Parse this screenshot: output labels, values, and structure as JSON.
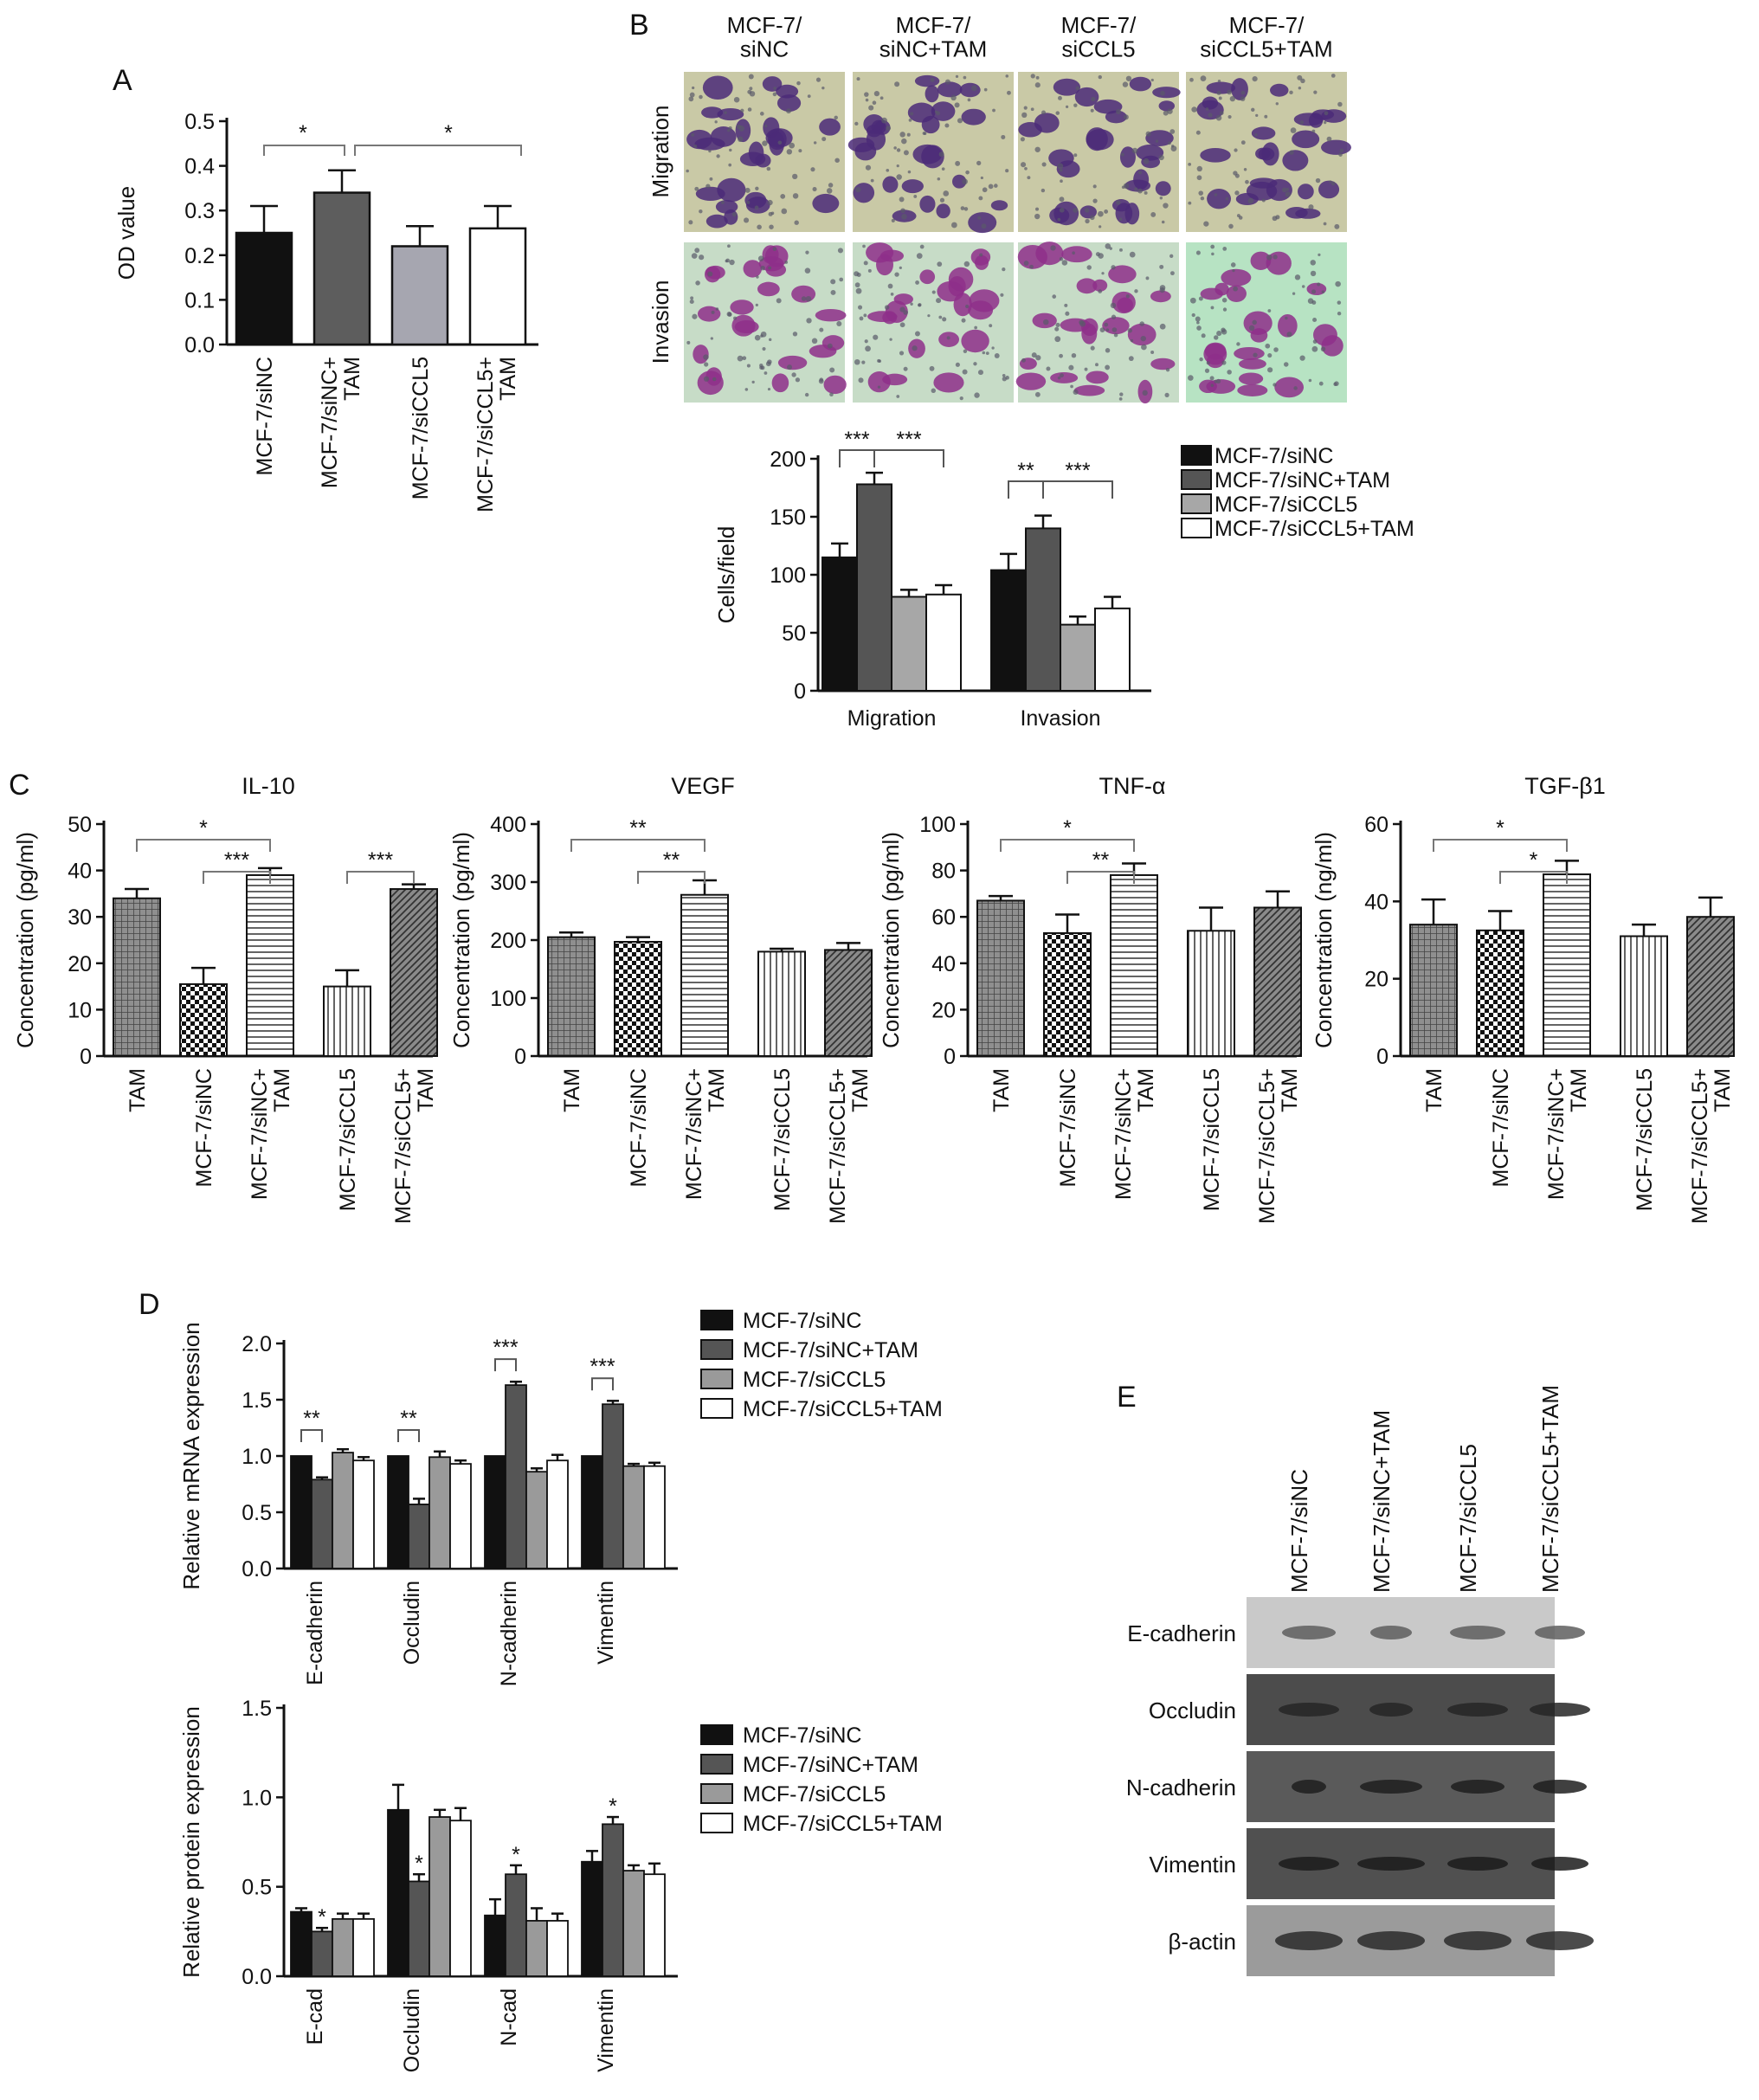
{
  "figure": {
    "panel_letters": [
      "A",
      "B",
      "C",
      "D",
      "E"
    ]
  },
  "panel_b_images": {
    "column_labels": [
      "MCF-7/\nsiNC",
      "MCF-7/\nsiNC+TAM",
      "MCF-7/\nsiCCL5",
      "MCF-7/\nsiCCL5+TAM"
    ],
    "row_labels": [
      "Migration",
      "Invasion"
    ]
  },
  "panel_e_blot": {
    "lanes": [
      "MCF-7/siNC",
      "MCF-7/siNC+TAM",
      "MCF-7/siCCL5",
      "MCF-7/siCCL5+TAM"
    ],
    "rows": [
      "E-cadherin",
      "Occludin",
      "N-cadherin",
      "Vimentin",
      "β-actin"
    ]
  },
  "colors": {
    "black": "#111111",
    "dark_gray": "#555555",
    "mid_gray": "#8a8a8a",
    "light_gray": "#a7a7a7",
    "white": "#ffffff"
  },
  "chart_data": [
    {
      "id": "A",
      "type": "bar",
      "title": "",
      "ylabel": "OD value",
      "ylim": [
        0,
        0.5
      ],
      "yticks": [
        "0.0",
        "0.1",
        "0.2",
        "0.3",
        "0.4",
        "0.5"
      ],
      "categories": [
        "MCF-7/siNC",
        "MCF-7/siNC+\nTAM",
        "MCF-7/siCCL5",
        "MCF-7/siCCL5+\nTAM"
      ],
      "values": [
        0.25,
        0.34,
        0.22,
        0.26
      ],
      "errors": [
        0.06,
        0.05,
        0.045,
        0.05
      ],
      "significance": [
        {
          "from": 0,
          "to": 1,
          "label": "*"
        },
        {
          "from": 1,
          "to": 3,
          "label": "*"
        }
      ]
    },
    {
      "id": "B",
      "type": "bar",
      "ylabel": "Cells/field",
      "ylim": [
        0,
        200
      ],
      "yticks": [
        "0",
        "50",
        "100",
        "150",
        "200"
      ],
      "categories": [
        "Migration",
        "Invasion"
      ],
      "series": [
        {
          "name": "MCF-7/siNC",
          "values": [
            115,
            104
          ],
          "errors": [
            12,
            14
          ]
        },
        {
          "name": "MCF-7/siNC+TAM",
          "values": [
            178,
            140
          ],
          "errors": [
            10,
            11
          ]
        },
        {
          "name": "MCF-7/siCCL5",
          "values": [
            81,
            57
          ],
          "errors": [
            6,
            7
          ]
        },
        {
          "name": "MCF-7/siCCL5+TAM",
          "values": [
            83,
            71
          ],
          "errors": [
            8,
            10
          ]
        }
      ],
      "significance": [
        {
          "group": 0,
          "from": 0,
          "to": 1,
          "label": "***"
        },
        {
          "group": 0,
          "from": 1,
          "to": 3,
          "label": "***"
        },
        {
          "group": 1,
          "from": 0,
          "to": 1,
          "label": "**"
        },
        {
          "group": 1,
          "from": 1,
          "to": 3,
          "label": "***"
        }
      ],
      "legend_position": "right"
    },
    {
      "id": "C1",
      "type": "bar",
      "title": "IL-10",
      "ylabel": "Concentration (pg/ml)",
      "ylim": [
        0,
        50
      ],
      "yticks": [
        "0",
        "10",
        "20",
        "30",
        "40",
        "50"
      ],
      "categories": [
        "TAM",
        "MCF-7/siNC",
        "MCF-7/siNC+\nTAM",
        "MCF-7/siCCL5",
        "MCF-7/siCCL5+\nTAM"
      ],
      "values": [
        34,
        15.5,
        39,
        15,
        36
      ],
      "errors": [
        2,
        3.5,
        1.5,
        3.5,
        1
      ],
      "significance": [
        {
          "from": 0,
          "to": 2,
          "label": "*"
        },
        {
          "from": 1,
          "to": 2,
          "label": "***"
        },
        {
          "from": 3,
          "to": 4,
          "label": "***"
        }
      ]
    },
    {
      "id": "C2",
      "type": "bar",
      "title": "VEGF",
      "ylabel": "Concentration (pg/ml)",
      "ylim": [
        0,
        400
      ],
      "yticks": [
        "0",
        "100",
        "200",
        "300",
        "400"
      ],
      "categories": [
        "TAM",
        "MCF-7/siNC",
        "MCF-7/siNC+\nTAM",
        "MCF-7/siCCL5",
        "MCF-7/siCCL5+\nTAM"
      ],
      "values": [
        205,
        197,
        278,
        180,
        183
      ],
      "errors": [
        8,
        8,
        25,
        5,
        12
      ],
      "significance": [
        {
          "from": 0,
          "to": 2,
          "label": "**"
        },
        {
          "from": 1,
          "to": 2,
          "label": "**"
        }
      ]
    },
    {
      "id": "C3",
      "type": "bar",
      "title": "TNF-α",
      "ylabel": "Concentration (pg/ml)",
      "ylim": [
        0,
        100
      ],
      "yticks": [
        "0",
        "20",
        "40",
        "60",
        "80",
        "100"
      ],
      "categories": [
        "TAM",
        "MCF-7/siNC",
        "MCF-7/siNC+\nTAM",
        "MCF-7/siCCL5",
        "MCF-7/siCCL5+\nTAM"
      ],
      "values": [
        67,
        53,
        78,
        54,
        64
      ],
      "errors": [
        2,
        8,
        5,
        10,
        7
      ],
      "significance": [
        {
          "from": 0,
          "to": 2,
          "label": "*"
        },
        {
          "from": 1,
          "to": 2,
          "label": "**"
        }
      ]
    },
    {
      "id": "C4",
      "type": "bar",
      "title": "TGF-β1",
      "ylabel": "Concentration (ng/ml)",
      "ylim": [
        0,
        60
      ],
      "yticks": [
        "0",
        "20",
        "40",
        "60"
      ],
      "categories": [
        "TAM",
        "MCF-7/siNC",
        "MCF-7/siNC+\nTAM",
        "MCF-7/siCCL5",
        "MCF-7/siCCL5+\nTAM"
      ],
      "values": [
        34,
        32.5,
        47,
        31,
        36
      ],
      "errors": [
        6.5,
        5,
        3.5,
        3,
        5
      ],
      "significance": [
        {
          "from": 0,
          "to": 2,
          "label": "*"
        },
        {
          "from": 1,
          "to": 2,
          "label": "*"
        }
      ]
    },
    {
      "id": "D1",
      "type": "bar",
      "ylabel": "Relative mRNA expression",
      "ylim": [
        0,
        2.0
      ],
      "yticks": [
        "0.0",
        "0.5",
        "1.0",
        "1.5",
        "2.0"
      ],
      "categories": [
        "E-cadherin",
        "Occludin",
        "N-cadherin",
        "Vimentin"
      ],
      "series": [
        {
          "name": "MCF-7/siNC",
          "values": [
            1.0,
            1.0,
            1.0,
            1.0
          ],
          "errors": [
            0,
            0,
            0,
            0
          ]
        },
        {
          "name": "MCF-7/siNC+TAM",
          "values": [
            0.79,
            0.57,
            1.63,
            1.46
          ],
          "errors": [
            0.02,
            0.05,
            0.03,
            0.03
          ]
        },
        {
          "name": "MCF-7/siCCL5",
          "values": [
            1.03,
            0.99,
            0.86,
            0.91
          ],
          "errors": [
            0.03,
            0.05,
            0.03,
            0.02
          ]
        },
        {
          "name": "MCF-7/siCCL5+TAM",
          "values": [
            0.96,
            0.93,
            0.96,
            0.91
          ],
          "errors": [
            0.03,
            0.03,
            0.05,
            0.03
          ]
        }
      ],
      "significance": [
        {
          "group": 0,
          "label": "**"
        },
        {
          "group": 1,
          "label": "**"
        },
        {
          "group": 2,
          "label": "***"
        },
        {
          "group": 3,
          "label": "***"
        }
      ],
      "legend_position": "right"
    },
    {
      "id": "D2",
      "type": "bar",
      "ylabel": "Relative protein expression",
      "ylim": [
        0,
        1.5
      ],
      "yticks": [
        "0.0",
        "0.5",
        "1.0",
        "1.5"
      ],
      "categories": [
        "E-cad",
        "Occludin",
        "N-cad",
        "Vimentin"
      ],
      "series": [
        {
          "name": "MCF-7/siNC",
          "values": [
            0.36,
            0.93,
            0.34,
            0.64
          ],
          "errors": [
            0.02,
            0.14,
            0.09,
            0.06
          ]
        },
        {
          "name": "MCF-7/siNC+TAM",
          "values": [
            0.25,
            0.53,
            0.57,
            0.85
          ],
          "errors": [
            0.02,
            0.04,
            0.05,
            0.04
          ]
        },
        {
          "name": "MCF-7/siCCL5",
          "values": [
            0.32,
            0.89,
            0.31,
            0.59
          ],
          "errors": [
            0.03,
            0.04,
            0.07,
            0.03
          ]
        },
        {
          "name": "MCF-7/siCCL5+TAM",
          "values": [
            0.32,
            0.87,
            0.31,
            0.57
          ],
          "errors": [
            0.03,
            0.07,
            0.04,
            0.06
          ]
        }
      ],
      "stars": [
        "*",
        "*",
        "*",
        "*"
      ],
      "legend_position": "right"
    }
  ]
}
